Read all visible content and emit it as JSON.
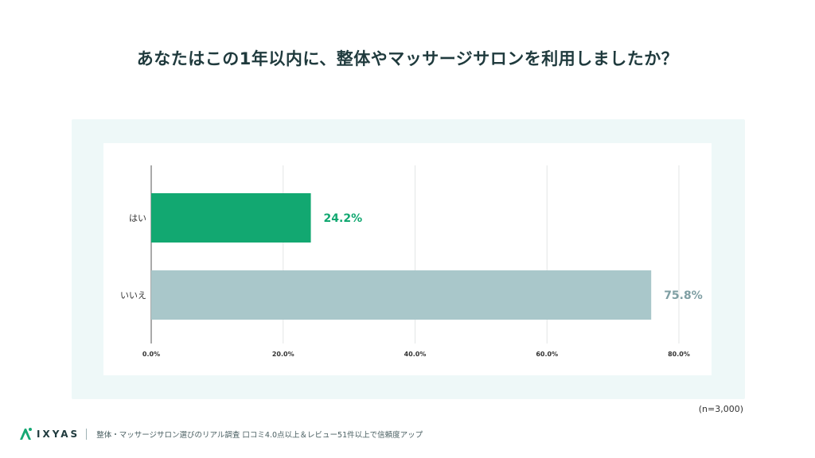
{
  "title": "あなたはこの1年以内に、整体やマッサージサロンを利用しましたか？",
  "sample_size": "(n=3,000)",
  "footer": {
    "logo_text": "IXYAS",
    "logo_icon": "ixyas-logo-icon",
    "caption": "整体・マッサージサロン選びのリアル調査 口コミ4.0点以上＆レビュー51件以上で信頼度アップ"
  },
  "colors": {
    "yes": "#12a871",
    "no": "#a9c7ca",
    "yes_label": "#12a871",
    "no_label": "#7f9fa3"
  },
  "chart_data": {
    "type": "bar",
    "orientation": "horizontal",
    "categories": [
      "はい",
      "いいえ"
    ],
    "values": [
      24.2,
      75.8
    ],
    "value_labels": [
      "24.2%",
      "75.8%"
    ],
    "x_ticks": [
      "0.0%",
      "20.0%",
      "40.0%",
      "60.0%",
      "80.0%"
    ],
    "xlim": [
      0,
      80
    ],
    "grid": true,
    "legend": "none"
  }
}
